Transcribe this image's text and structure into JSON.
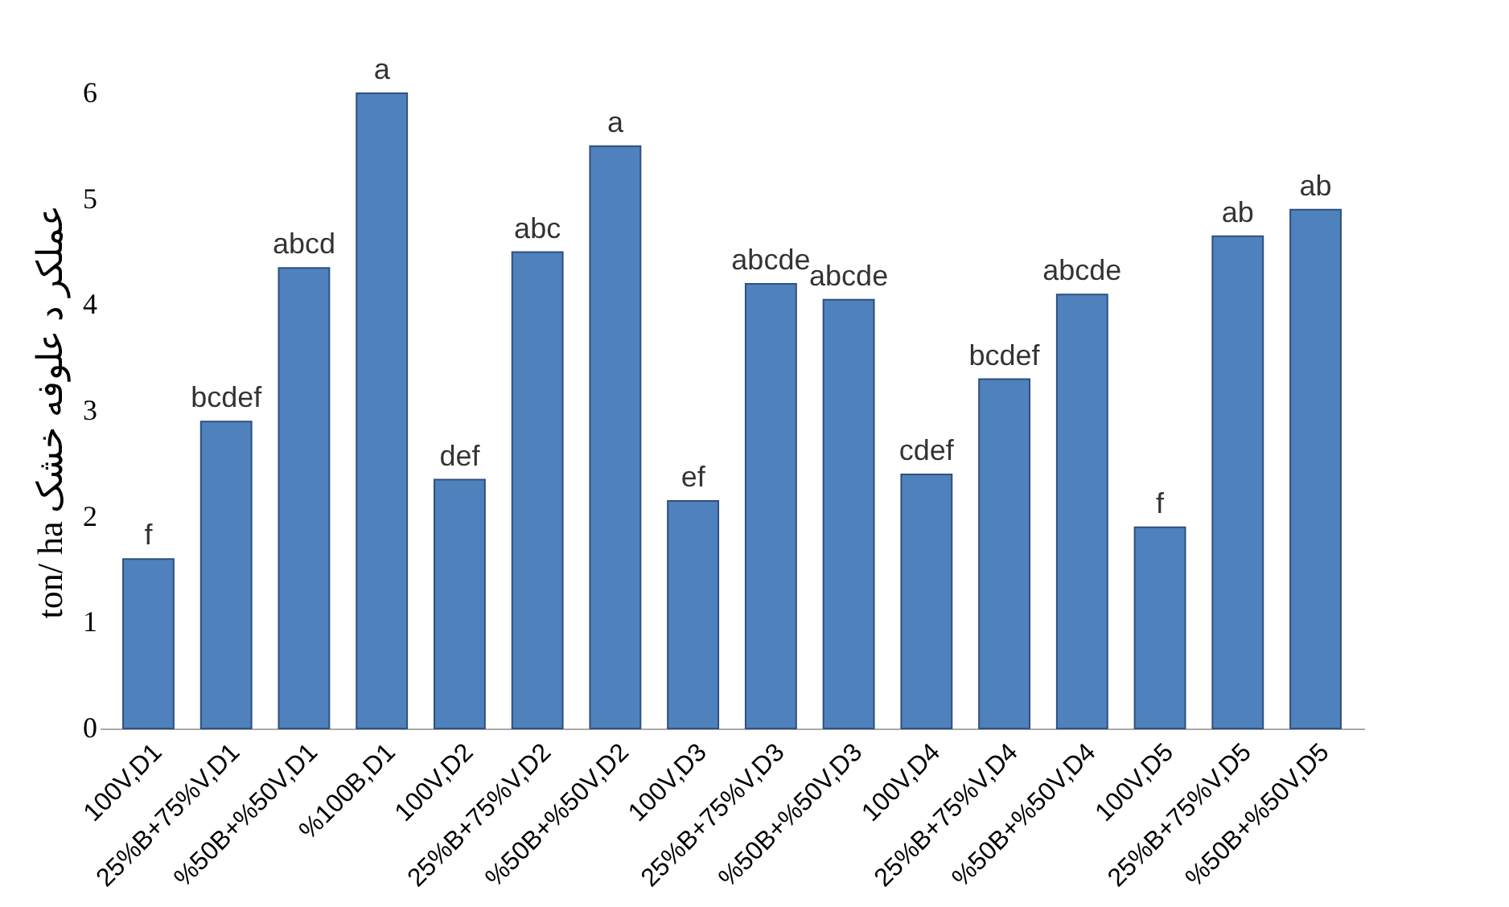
{
  "chart_data": {
    "type": "bar",
    "ylabel": "ton/ ha عملکر د علوفه خشک",
    "categories": [
      "100V,D1",
      "25%B+75%V,D1",
      "%50B+%50V,D1",
      "%100B,D1",
      "100V,D2",
      "25%B+75%V,D2",
      "%50B+%50V,D2",
      "100V,D3",
      "25%B+75%V,D3",
      "%50B+%50V,D3",
      "100V,D4",
      "25%B+75%V,D4",
      "%50B+%50V,D4",
      "100V,D5",
      "25%B+75%V,D5",
      "%50B+%50V,D5"
    ],
    "values": [
      1.6,
      2.9,
      4.35,
      6.0,
      2.35,
      4.5,
      5.5,
      2.15,
      4.2,
      4.05,
      2.4,
      3.3,
      4.1,
      1.9,
      4.65,
      4.9
    ],
    "value_labels": [
      "f",
      "bcdef",
      "abcd",
      "a",
      "def",
      "abc",
      "a",
      "ef",
      "abcde",
      "abcde",
      "cdef",
      "bcdef",
      "abcde",
      "f",
      "ab",
      "ab"
    ],
    "color": "#4f81bd",
    "ylim": [
      0,
      6
    ],
    "yticks": [
      0,
      1,
      2,
      3,
      4,
      5,
      6
    ],
    "grid": false
  }
}
